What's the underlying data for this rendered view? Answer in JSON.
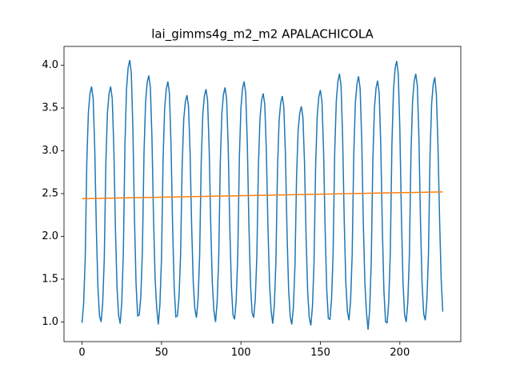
{
  "chart_data": {
    "type": "line",
    "title": "lai_gimms4g_m2_m2 APALACHICOLA",
    "xlim": [
      -11.35,
      238.35
    ],
    "ylim": [
      0.77,
      4.22
    ],
    "xticks": [
      0,
      50,
      100,
      150,
      200
    ],
    "yticks": [
      {
        "value": 1,
        "label": "1.0"
      },
      {
        "value": 1.5,
        "label": "1.5"
      },
      {
        "value": 2,
        "label": "2.0"
      },
      {
        "value": 2.5,
        "label": "2.5"
      },
      {
        "value": 3,
        "label": "3.0"
      },
      {
        "value": 3.5,
        "label": "3.5"
      },
      {
        "value": 4,
        "label": "4.0"
      }
    ],
    "series": [
      {
        "color": "#1f77b4",
        "x": [
          0,
          1,
          2,
          3,
          4,
          5,
          6,
          7,
          8,
          9,
          10,
          11,
          12,
          13,
          14,
          15,
          16,
          17,
          18,
          19,
          20,
          21,
          22,
          23,
          24,
          25,
          26,
          27,
          28,
          29,
          30,
          31,
          32,
          33,
          34,
          35,
          36,
          37,
          38,
          39,
          40,
          41,
          42,
          43,
          44,
          45,
          46,
          47,
          48,
          49,
          50,
          51,
          52,
          53,
          54,
          55,
          56,
          57,
          58,
          59,
          60,
          61,
          62,
          63,
          64,
          65,
          66,
          67,
          68,
          69,
          70,
          71,
          72,
          73,
          74,
          75,
          76,
          77,
          78,
          79,
          80,
          81,
          82,
          83,
          84,
          85,
          86,
          87,
          88,
          89,
          90,
          91,
          92,
          93,
          94,
          95,
          96,
          97,
          98,
          99,
          100,
          101,
          102,
          103,
          104,
          105,
          106,
          107,
          108,
          109,
          110,
          111,
          112,
          113,
          114,
          115,
          116,
          117,
          118,
          119,
          120,
          121,
          122,
          123,
          124,
          125,
          126,
          127,
          128,
          129,
          130,
          131,
          132,
          133,
          134,
          135,
          136,
          137,
          138,
          139,
          140,
          141,
          142,
          143,
          144,
          145,
          146,
          147,
          148,
          149,
          150,
          151,
          152,
          153,
          154,
          155,
          156,
          157,
          158,
          159,
          160,
          161,
          162,
          163,
          164,
          165,
          166,
          167,
          168,
          169,
          170,
          171,
          172,
          173,
          174,
          175,
          176,
          177,
          178,
          179,
          180,
          181,
          182,
          183,
          184,
          185,
          186,
          187,
          188,
          189,
          190,
          191,
          192,
          193,
          194,
          195,
          196,
          197,
          198,
          199,
          200,
          201,
          202,
          203,
          204,
          205,
          206,
          207,
          208,
          209,
          210,
          211,
          212,
          213,
          214,
          215,
          216,
          217,
          218,
          219,
          220,
          221,
          222,
          223,
          224,
          225,
          226,
          227
        ],
        "values": [
          0.99,
          1.21,
          1.74,
          2.87,
          3.45,
          3.67,
          3.75,
          3.61,
          3.03,
          2.09,
          1.4,
          1.07,
          1.0,
          1.22,
          1.74,
          2.87,
          3.45,
          3.67,
          3.75,
          3.61,
          3.04,
          2.1,
          1.41,
          1.08,
          0.98,
          1.23,
          1.81,
          3.07,
          3.72,
          3.97,
          4.06,
          3.91,
          3.26,
          2.21,
          1.44,
          1.07,
          1.08,
          1.3,
          1.84,
          2.98,
          3.57,
          3.8,
          3.88,
          3.74,
          3.15,
          2.2,
          1.5,
          1.16,
          0.97,
          1.2,
          1.74,
          2.9,
          3.5,
          3.72,
          3.81,
          3.67,
          3.07,
          2.11,
          1.4,
          1.06,
          1.07,
          1.28,
          1.77,
          2.82,
          3.37,
          3.57,
          3.65,
          3.52,
          2.98,
          2.1,
          1.46,
          1.15,
          1.05,
          1.26,
          1.77,
          2.87,
          3.43,
          3.64,
          3.72,
          3.59,
          3.03,
          2.12,
          1.45,
          1.13,
          1.0,
          1.22,
          1.74,
          2.86,
          3.44,
          3.66,
          3.74,
          3.6,
          3.03,
          2.1,
          1.41,
          1.08,
          1.03,
          1.25,
          1.78,
          2.92,
          3.5,
          3.73,
          3.81,
          3.67,
          3.09,
          2.14,
          1.45,
          1.11,
          1.05,
          1.26,
          1.76,
          2.83,
          3.38,
          3.59,
          3.67,
          3.54,
          2.99,
          2.1,
          1.44,
          1.13,
          0.98,
          1.19,
          1.7,
          2.79,
          3.35,
          3.56,
          3.64,
          3.51,
          2.95,
          2.04,
          1.38,
          1.06,
          0.97,
          1.17,
          1.66,
          2.7,
          3.24,
          3.44,
          3.52,
          3.39,
          2.86,
          1.99,
          1.35,
          1.05,
          0.96,
          1.18,
          1.7,
          2.83,
          3.41,
          3.63,
          3.71,
          3.57,
          3.0,
          2.06,
          1.37,
          1.04,
          1.03,
          1.26,
          1.8,
          2.98,
          3.58,
          3.81,
          3.9,
          3.76,
          3.15,
          2.18,
          1.46,
          1.12,
          1.02,
          1.25,
          1.79,
          2.96,
          3.56,
          3.78,
          3.87,
          3.73,
          3.13,
          2.16,
          1.45,
          1.11,
          0.91,
          1.14,
          1.7,
          2.89,
          3.5,
          3.73,
          3.82,
          3.67,
          3.06,
          2.07,
          1.35,
          1.0,
          0.99,
          1.23,
          1.82,
          3.07,
          3.71,
          3.96,
          4.05,
          3.9,
          3.25,
          2.21,
          1.45,
          1.08,
          1.0,
          1.23,
          1.78,
          2.97,
          3.58,
          3.81,
          3.9,
          3.76,
          3.15,
          2.16,
          1.44,
          1.09,
          1.02,
          1.25,
          1.79,
          2.96,
          3.55,
          3.78,
          3.86,
          3.65,
          3.05,
          2.2,
          1.5,
          1.12
        ]
      },
      {
        "color": "#ff7f0e",
        "x": [
          0,
          227
        ],
        "values": [
          2.44,
          2.52
        ]
      }
    ]
  }
}
